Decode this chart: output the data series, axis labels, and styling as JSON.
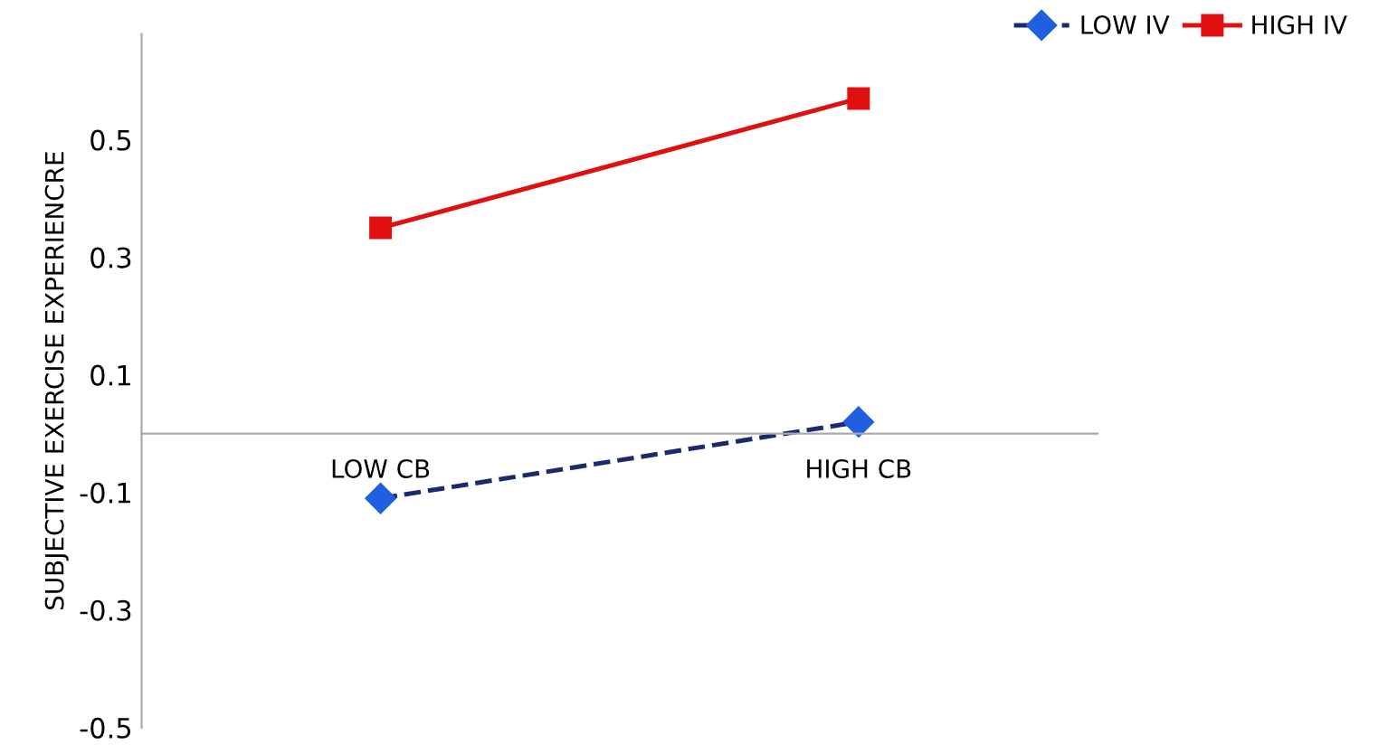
{
  "chart_data": {
    "type": "line",
    "ylabel": "SUBJECTIVE EXERCISE EXPERIENCRE",
    "categories": [
      "LOW CB",
      "HIGH CB"
    ],
    "series": [
      {
        "name": "LOW IV",
        "color": "#1f5fe0",
        "values": [
          -0.11,
          0.02
        ],
        "line_style": "dashed",
        "marker": "diamond"
      },
      {
        "name": "HIGH IV",
        "color": "#e01010",
        "values": [
          0.35,
          0.57
        ],
        "line_style": "solid",
        "marker": "square"
      }
    ],
    "ylim": [
      -0.5,
      0.68
    ],
    "yticks": [
      -0.5,
      -0.3,
      -0.1,
      0.1,
      0.3,
      0.5
    ],
    "grid": false,
    "legend": "top right"
  }
}
